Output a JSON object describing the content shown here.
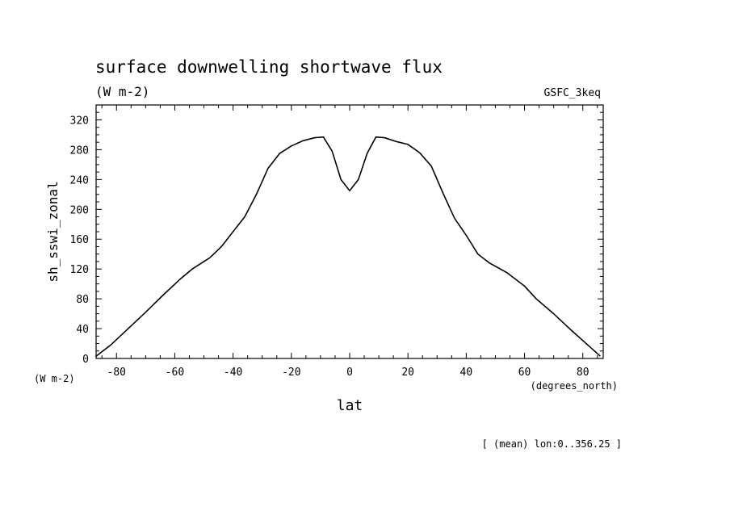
{
  "chart_data": {
    "type": "line",
    "title": "surface downwelling shortwave flux",
    "subtitle": "(W m-2)",
    "model_label": "GSFC_3keq",
    "ylabel": "sh_sswi_zonal",
    "yunits": "(W m-2)",
    "xlabel": "lat",
    "xunits": "(degrees_north)",
    "footnote": "[ (mean) lon:0..356.25 ]",
    "xlim": [
      -87,
      87
    ],
    "ylim": [
      0,
      340
    ],
    "x_ticks": [
      -80,
      -60,
      -40,
      -20,
      0,
      20,
      40,
      60,
      80
    ],
    "x_tick_labels": [
      "-80",
      "-60",
      "-40",
      "-20",
      "0",
      "20",
      "40",
      "60",
      "80"
    ],
    "y_ticks": [
      0,
      40,
      80,
      120,
      160,
      200,
      240,
      280,
      320
    ],
    "y_tick_labels": [
      "0",
      "40",
      "80",
      "120",
      "160",
      "200",
      "240",
      "280",
      "320"
    ],
    "grid": false,
    "series": [
      {
        "color": "#000000",
        "x": [
          -87,
          -82,
          -76,
          -70,
          -64,
          -58,
          -54,
          -48,
          -44,
          -40,
          -36,
          -32,
          -28,
          -24,
          -20,
          -16,
          -12,
          -9,
          -6,
          -3,
          0,
          3,
          6,
          9,
          12,
          16,
          20,
          24,
          28,
          32,
          36,
          40,
          44,
          48,
          54,
          60,
          64,
          70,
          76,
          82,
          86
        ],
        "y": [
          3,
          18,
          40,
          62,
          85,
          107,
          120,
          135,
          150,
          170,
          190,
          220,
          255,
          275,
          285,
          292,
          296,
          297,
          278,
          240,
          225,
          240,
          275,
          297,
          296,
          291,
          287,
          276,
          258,
          222,
          188,
          165,
          140,
          128,
          115,
          97,
          80,
          60,
          38,
          17,
          3
        ]
      }
    ]
  }
}
